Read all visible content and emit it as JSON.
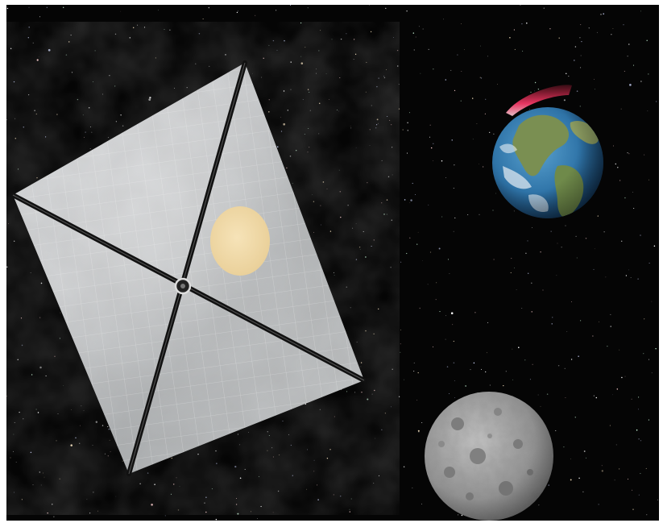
{
  "scene": {
    "background_color": "#050505",
    "objects": [
      "solar-sail",
      "sun-reflection",
      "earth",
      "earth-aurora",
      "moon",
      "star-field"
    ],
    "colors": {
      "sail": "#b9bcbf",
      "sail_boom": "#111111",
      "sun_reflection": "#f1dcae",
      "earth_ocean": "#2f74a8",
      "earth_land": "#6f8a4a",
      "aurora": "#ff3b6b",
      "moon": "#9a9a9a"
    }
  }
}
